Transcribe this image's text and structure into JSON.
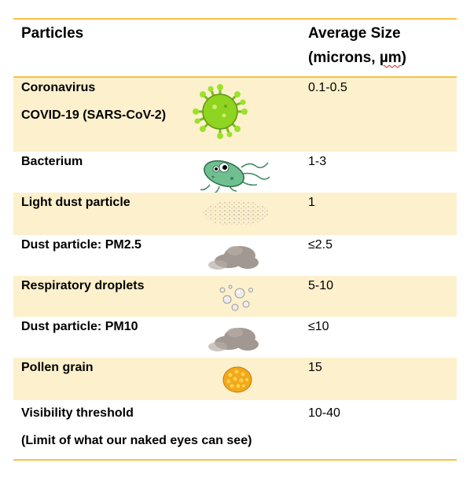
{
  "table": {
    "header": {
      "col1": "Particles",
      "col2_line1": "Average Size",
      "col2_line2_pre": "(microns, ",
      "col2_unit": "µm",
      "col2_line2_post": ")"
    },
    "rows": [
      {
        "name": "Coronavirus",
        "name2": "COVID-19 (SARS-CoV-2)",
        "size": "0.1-0.5",
        "icon": "coronavirus-icon"
      },
      {
        "name": "Bacterium",
        "size": "1-3",
        "icon": "bacterium-icon"
      },
      {
        "name": "Light dust particle",
        "size": "1",
        "icon": "light-dust-icon"
      },
      {
        "name": "Dust particle: PM2.5",
        "size": "≤2.5",
        "icon": "dust-cloud-icon"
      },
      {
        "name": "Respiratory droplets",
        "size": "5-10",
        "icon": "droplets-icon"
      },
      {
        "name": "Dust particle: PM10",
        "size": "≤10",
        "icon": "dust-cloud-icon"
      },
      {
        "name": "Pollen grain",
        "size": "15",
        "icon": "pollen-icon"
      },
      {
        "name": "Visibility threshold",
        "name2": "(Limit of what our naked eyes can see)",
        "size": "10-40"
      }
    ]
  },
  "colors": {
    "rule": "#f6c342",
    "shade": "#fdf0cc"
  }
}
